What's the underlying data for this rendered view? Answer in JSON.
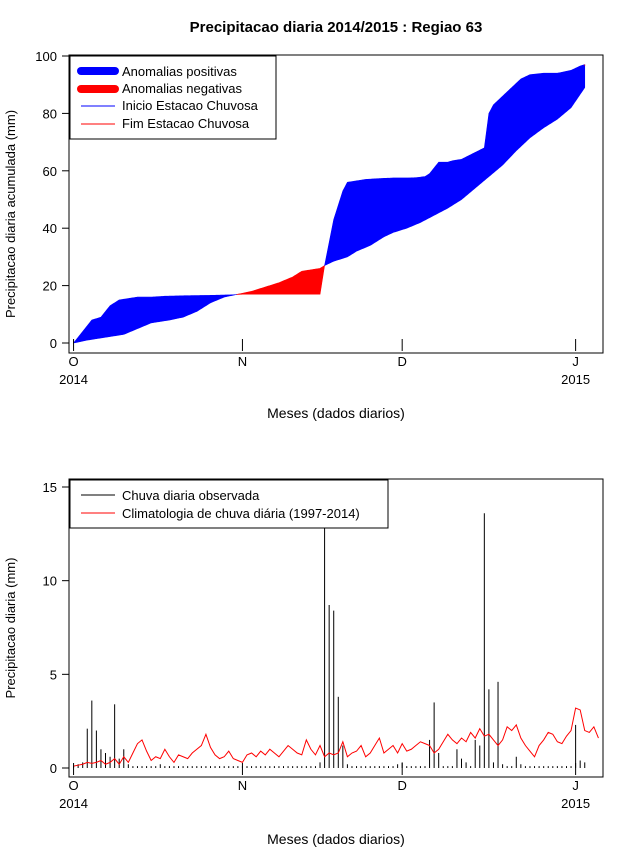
{
  "title": "Precipitacao diaria 2014/2015 : Regiao 63",
  "chart_data": [
    {
      "type": "area",
      "id": "accumulated",
      "ylabel": "Precipitacao diaria acumulada (mm)",
      "xlabel": "Meses (dados diarios)",
      "xlim": [
        -1,
        116
      ],
      "ylim": [
        0,
        100
      ],
      "yticks": [
        0,
        20,
        40,
        60,
        80,
        100
      ],
      "month_ticks": [
        {
          "day": 0,
          "label": "O"
        },
        {
          "day": 37,
          "label": "N"
        },
        {
          "day": 72,
          "label": "D"
        },
        {
          "day": 110,
          "label": "J"
        }
      ],
      "year_labels": [
        {
          "day": 0,
          "label": "2014"
        },
        {
          "day": 110,
          "label": "2015"
        }
      ],
      "legend": {
        "position": "top-left",
        "items": [
          {
            "label": "Anomalias positivas",
            "color": "#0000ff",
            "style": "thick"
          },
          {
            "label": "Anomalias negativas",
            "color": "#ff0000",
            "style": "thick"
          },
          {
            "label": "Inicio Estacao Chuvosa",
            "color": "#0000ff",
            "style": "thin"
          },
          {
            "label": "Fim Estacao Chuvosa",
            "color": "#ff0000",
            "style": "thin"
          }
        ]
      },
      "colors": {
        "positive": "#0000ff",
        "negative": "#ff0000"
      },
      "observed_cumulative": {
        "x": [
          0,
          2,
          4,
          6,
          7,
          8,
          9,
          10,
          12,
          14,
          17,
          20,
          25,
          30,
          35,
          37,
          40,
          45,
          50,
          54,
          55,
          56,
          57,
          58,
          59,
          60,
          62,
          64,
          67,
          70,
          73,
          75,
          77,
          78,
          80,
          82,
          83,
          85,
          90,
          91,
          92,
          94,
          96,
          98,
          100,
          103,
          106,
          109,
          111,
          112
        ],
        "values": [
          0,
          4,
          8,
          9,
          11,
          13,
          14,
          15,
          15.5,
          16,
          16,
          16.3,
          16.5,
          16.6,
          16.8,
          17,
          17,
          17,
          17,
          17,
          27,
          35,
          43,
          48,
          53,
          56,
          56.5,
          57,
          57.3,
          57.5,
          57.5,
          57.6,
          58,
          59,
          63,
          63,
          63.5,
          64,
          68,
          80,
          83,
          86,
          89,
          92,
          93.5,
          94,
          94,
          95,
          96.5,
          97
        ]
      },
      "climatology_cumulative": {
        "x": [
          0,
          3,
          7,
          11,
          14,
          17,
          21,
          24,
          27,
          30,
          33,
          36,
          39,
          42,
          45,
          48,
          50,
          52,
          54,
          55,
          57,
          60,
          62,
          65,
          68,
          70,
          73,
          76,
          79,
          82,
          85,
          88,
          91,
          94,
          97,
          100,
          103,
          106,
          109,
          112
        ],
        "values": [
          0,
          1,
          2,
          3,
          5,
          7,
          8,
          9,
          11,
          14,
          16,
          17,
          18,
          19.5,
          21,
          23,
          25,
          25.5,
          26,
          27,
          28.5,
          30,
          32,
          34,
          37,
          38.5,
          40,
          42,
          44.5,
          47,
          50,
          54,
          58,
          62,
          67,
          71.5,
          75,
          78,
          82,
          89
        ]
      }
    },
    {
      "type": "bar",
      "id": "daily",
      "ylabel": "Precipitacao diaria (mm)",
      "xlabel": "Meses (dados diarios)",
      "xlim": [
        -1,
        116
      ],
      "ylim": [
        0,
        15
      ],
      "yticks": [
        0,
        5,
        10,
        15
      ],
      "month_ticks": [
        {
          "day": 0,
          "label": "O"
        },
        {
          "day": 37,
          "label": "N"
        },
        {
          "day": 72,
          "label": "D"
        },
        {
          "day": 110,
          "label": "J"
        }
      ],
      "year_labels": [
        {
          "day": 0,
          "label": "2014"
        },
        {
          "day": 110,
          "label": "2015"
        }
      ],
      "legend": {
        "position": "top-left",
        "items": [
          {
            "label": "Chuva diaria observada",
            "color": "#000000"
          },
          {
            "label": "Climatologia de chuva diária (1997-2014)",
            "color": "#ff0000"
          }
        ]
      },
      "colors": {
        "observed": "#000000",
        "climatology": "#ff0000"
      },
      "observed_daily": {
        "x": [
          0,
          1,
          2,
          3,
          4,
          5,
          6,
          7,
          8,
          9,
          10,
          11,
          12,
          13,
          14,
          15,
          16,
          17,
          18,
          19,
          20,
          21,
          22,
          23,
          24,
          25,
          26,
          27,
          28,
          29,
          30,
          31,
          32,
          33,
          34,
          35,
          36,
          37,
          38,
          39,
          40,
          41,
          42,
          43,
          44,
          45,
          46,
          47,
          48,
          49,
          50,
          51,
          52,
          53,
          54,
          55,
          56,
          57,
          58,
          59,
          60,
          61,
          62,
          63,
          64,
          65,
          66,
          67,
          68,
          69,
          70,
          71,
          72,
          73,
          74,
          75,
          76,
          77,
          78,
          79,
          80,
          81,
          82,
          83,
          84,
          85,
          86,
          87,
          88,
          89,
          90,
          91,
          92,
          93,
          94,
          95,
          96,
          97,
          98,
          99,
          100,
          101,
          102,
          103,
          104,
          105,
          106,
          107,
          108,
          109,
          110,
          111,
          112
        ],
        "values": [
          0.1,
          0.2,
          0.3,
          2.1,
          3.6,
          2.0,
          1.0,
          0.8,
          0.6,
          3.4,
          0.5,
          1.0,
          0.2,
          0.1,
          0.1,
          0.1,
          0.1,
          0.1,
          0.1,
          0.2,
          0.1,
          0.1,
          0.1,
          0.1,
          0.1,
          0.1,
          0.1,
          0.1,
          0.1,
          0.1,
          0.1,
          0.1,
          0.1,
          0.1,
          0.1,
          0.1,
          0.1,
          0.1,
          0.1,
          0.1,
          0.1,
          0.1,
          0.1,
          0.1,
          0.1,
          0.1,
          0.1,
          0.1,
          0.1,
          0.1,
          0.1,
          0.1,
          0.1,
          0.1,
          0.3,
          12.9,
          8.7,
          8.4,
          3.8,
          1.2,
          0.2,
          0.1,
          0.1,
          0.1,
          0.1,
          0.1,
          0.1,
          0.1,
          0.1,
          0.1,
          0.1,
          0.2,
          0.3,
          0.1,
          0.1,
          0.1,
          0.1,
          0.1,
          1.5,
          3.5,
          0.8,
          0.1,
          0.1,
          0.1,
          1.0,
          0.5,
          0.3,
          0.1,
          1.5,
          1.2,
          13.6,
          4.2,
          0.3,
          4.6,
          0.2,
          0.1,
          0.1,
          0.6,
          0.2,
          0.1,
          0.1,
          0.1,
          0.1,
          0.1,
          0.1,
          0.1,
          0.1,
          0.1,
          0.1,
          0.1,
          2.3,
          0.4,
          0.3
        ]
      },
      "climatology_daily": {
        "x": [
          0,
          1,
          2,
          3,
          4,
          5,
          6,
          7,
          8,
          9,
          10,
          11,
          12,
          13,
          14,
          15,
          16,
          17,
          18,
          19,
          20,
          21,
          22,
          23,
          24,
          25,
          26,
          27,
          28,
          29,
          30,
          31,
          32,
          33,
          34,
          35,
          36,
          37,
          38,
          39,
          40,
          41,
          42,
          43,
          44,
          45,
          46,
          47,
          48,
          49,
          50,
          51,
          52,
          53,
          54,
          55,
          56,
          57,
          58,
          59,
          60,
          61,
          62,
          63,
          64,
          65,
          66,
          67,
          68,
          69,
          70,
          71,
          72,
          73,
          74,
          75,
          76,
          77,
          78,
          79,
          80,
          81,
          82,
          83,
          84,
          85,
          86,
          87,
          88,
          89,
          90,
          91,
          92,
          93,
          94,
          95,
          96,
          97,
          98,
          99,
          100,
          101,
          102,
          103,
          104,
          105,
          106,
          107,
          108,
          109,
          110,
          111,
          112,
          113,
          114,
          115
        ],
        "values": [
          0.1,
          0.15,
          0.2,
          0.3,
          0.25,
          0.3,
          0.4,
          0.2,
          0.3,
          0.5,
          0.2,
          0.6,
          0.3,
          0.8,
          1.3,
          1.5,
          0.9,
          0.4,
          0.6,
          0.5,
          1.0,
          0.6,
          0.3,
          0.7,
          0.6,
          0.5,
          0.8,
          1.0,
          1.2,
          1.8,
          1.1,
          0.7,
          0.5,
          0.6,
          0.9,
          0.5,
          0.4,
          0.3,
          0.7,
          0.8,
          0.6,
          0.9,
          0.7,
          1.0,
          0.8,
          0.6,
          0.9,
          1.2,
          1.0,
          0.8,
          0.7,
          1.5,
          1.0,
          0.7,
          1.2,
          0.6,
          0.8,
          0.7,
          0.8,
          1.4,
          0.6,
          0.8,
          0.9,
          1.2,
          0.6,
          0.8,
          1.2,
          1.6,
          0.8,
          1.0,
          1.2,
          0.8,
          1.3,
          0.9,
          1.0,
          1.2,
          1.4,
          1.3,
          1.2,
          0.8,
          1.0,
          1.4,
          1.8,
          1.5,
          1.3,
          1.6,
          1.4,
          1.9,
          1.6,
          2.1,
          1.7,
          1.8,
          1.5,
          1.2,
          1.5,
          2.2,
          2.0,
          2.3,
          1.6,
          1.2,
          0.9,
          0.6,
          1.2,
          1.5,
          1.9,
          1.8,
          1.4,
          1.3,
          1.7,
          2.0,
          3.2,
          3.1,
          2.0,
          1.9,
          2.2,
          1.6
        ]
      }
    }
  ]
}
